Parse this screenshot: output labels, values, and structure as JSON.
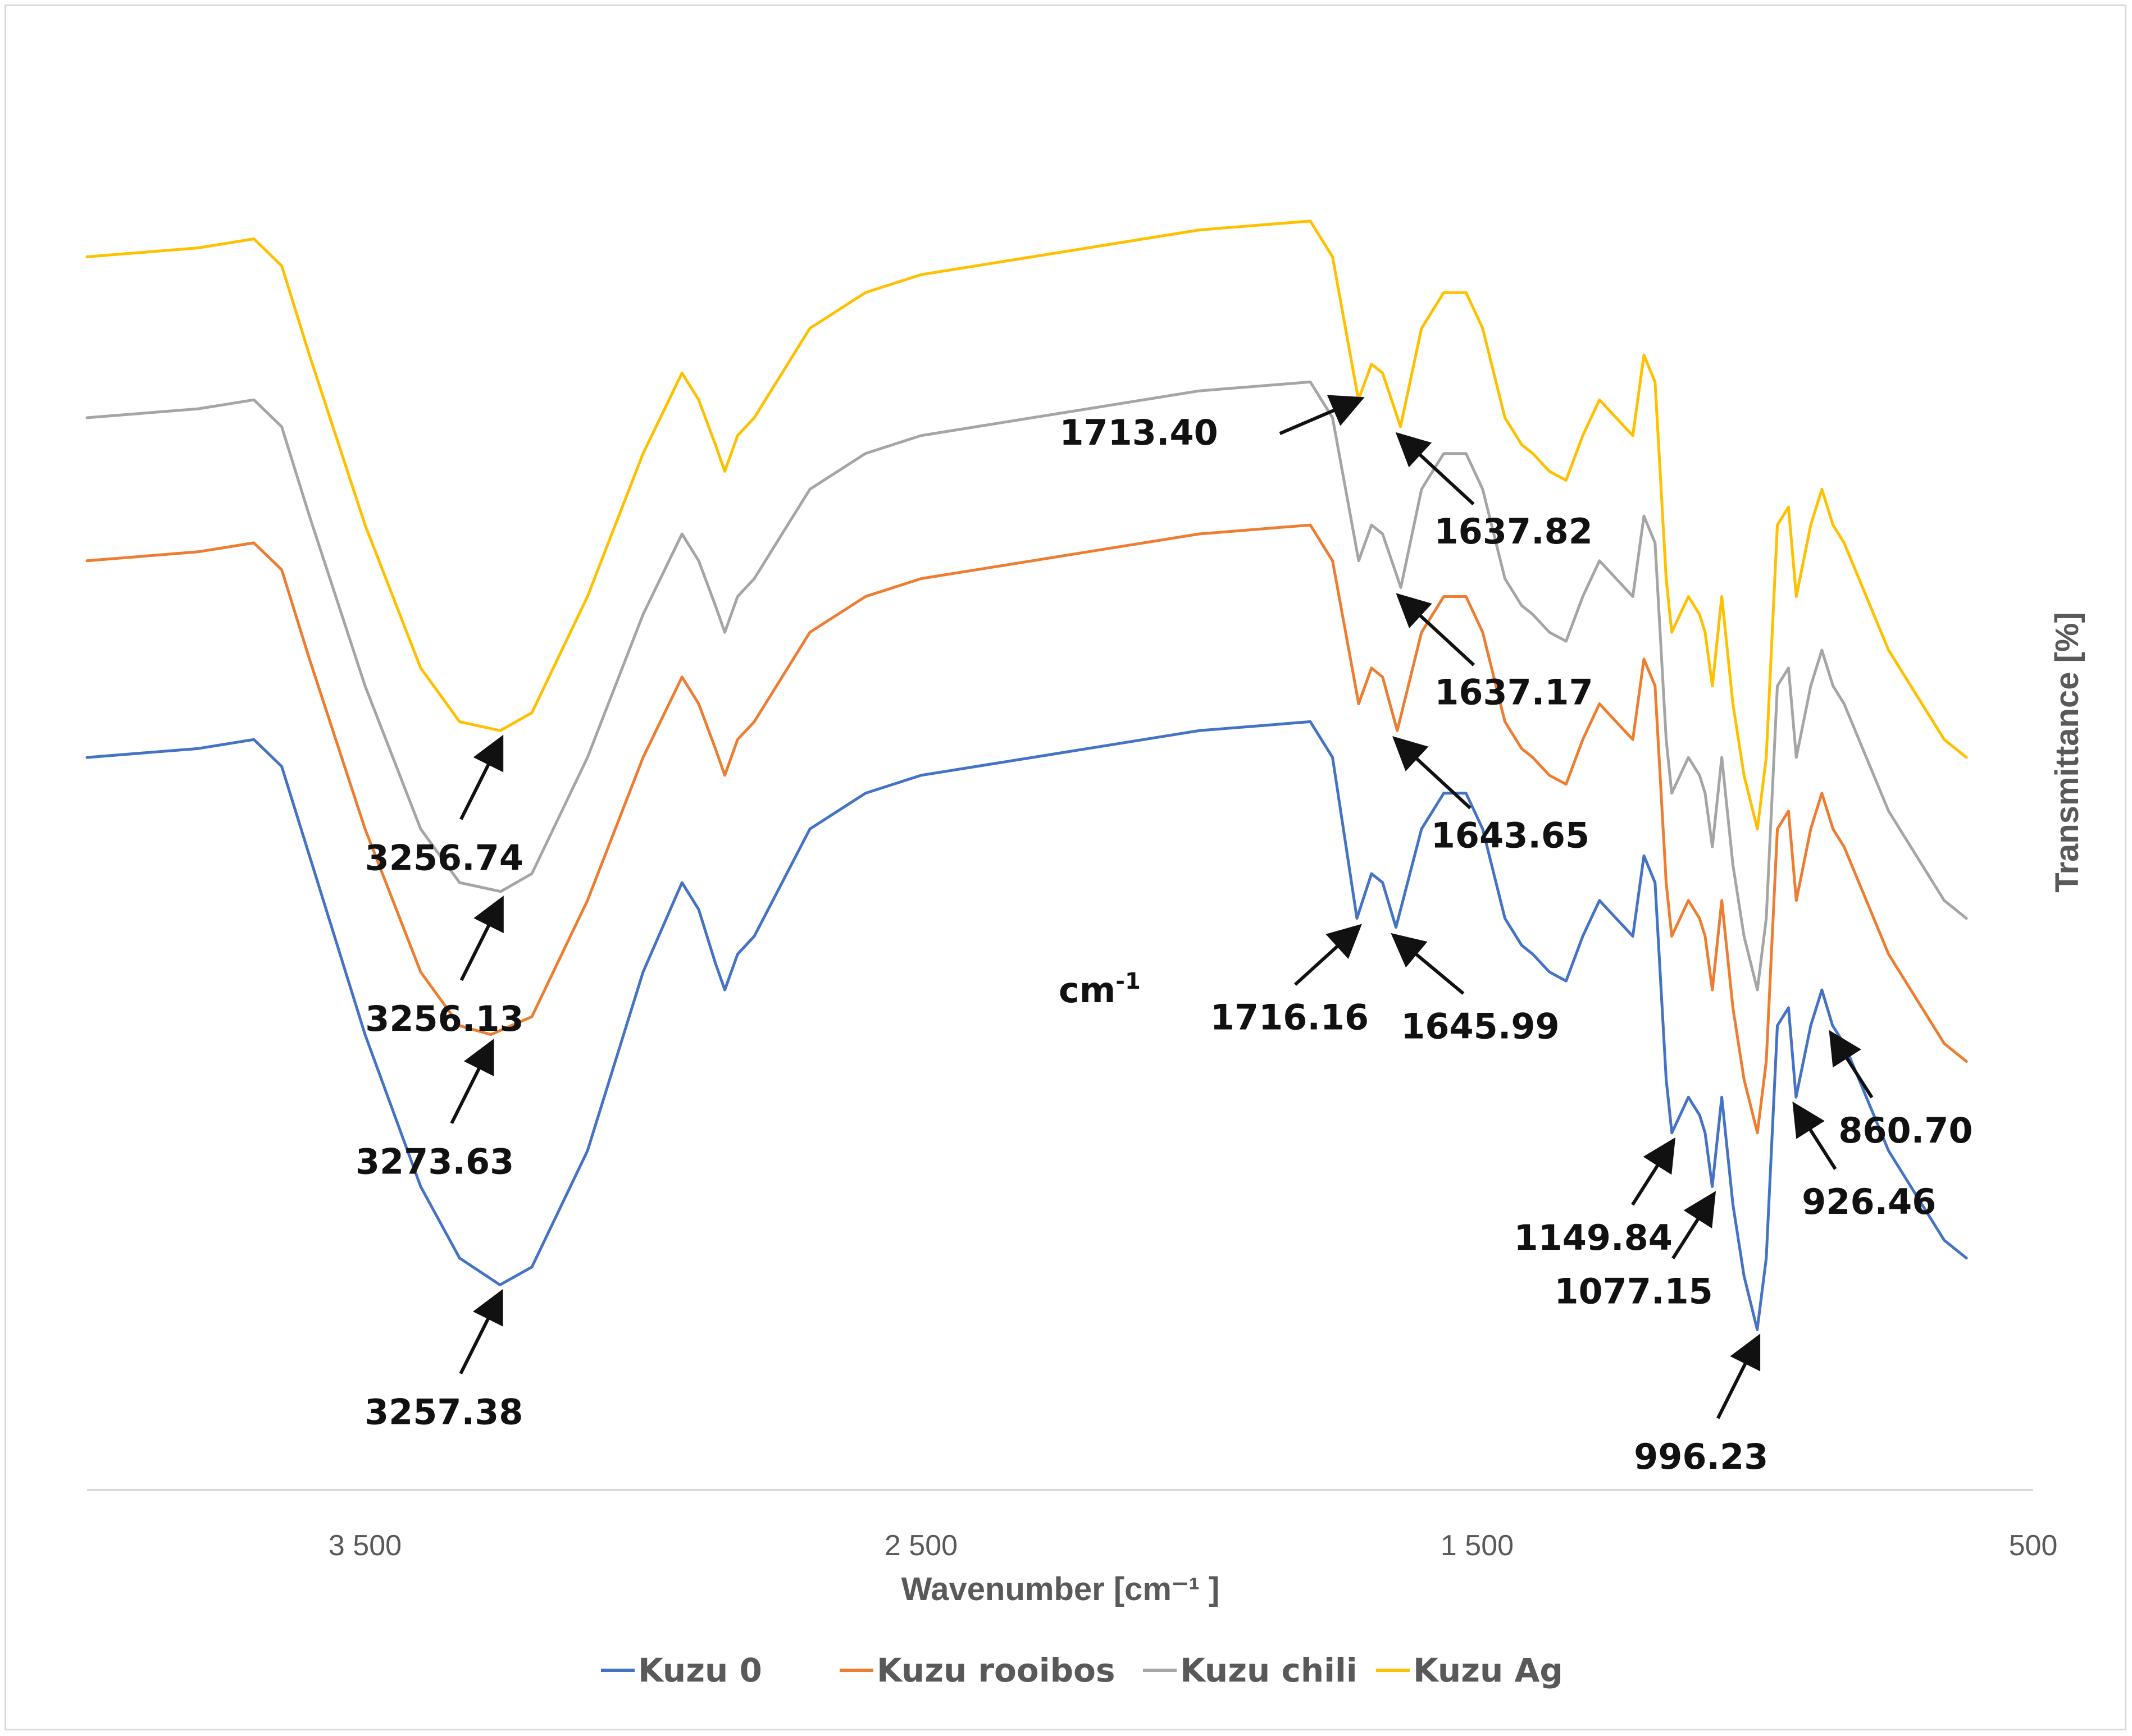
{
  "chart_data": {
    "type": "line",
    "title": "",
    "xlabel": "Wavenumber [cm⁻¹ ]",
    "ylabel": "Transmittance [%]",
    "xlim": [
      4000,
      500
    ],
    "x_reversed": true,
    "x_ticks": [
      {
        "value": 3500,
        "label": "3 500"
      },
      {
        "value": 2500,
        "label": "2 500"
      },
      {
        "value": 1500,
        "label": "1 500"
      },
      {
        "value": 500,
        "label": "500"
      }
    ],
    "y_ticks_shown": false,
    "grid": false,
    "legend_position": "bottom",
    "unit_note": "cm",
    "unit_note_sup": "-1",
    "series": [
      {
        "name": "Kuzu 0",
        "color": "#4472c4",
        "offset": 0,
        "points": [
          [
            4000,
            66
          ],
          [
            3800,
            67
          ],
          [
            3700,
            68
          ],
          [
            3650,
            65
          ],
          [
            3600,
            55
          ],
          [
            3500,
            35
          ],
          [
            3400,
            18
          ],
          [
            3330,
            10
          ],
          [
            3257.38,
            7
          ],
          [
            3200,
            9
          ],
          [
            3100,
            22
          ],
          [
            3000,
            42
          ],
          [
            2930,
            52
          ],
          [
            2900,
            49
          ],
          [
            2870,
            43
          ],
          [
            2853,
            40
          ],
          [
            2830,
            44
          ],
          [
            2800,
            46
          ],
          [
            2700,
            58
          ],
          [
            2600,
            62
          ],
          [
            2500,
            64
          ],
          [
            2400,
            65
          ],
          [
            2300,
            66
          ],
          [
            2200,
            67
          ],
          [
            2000,
            69
          ],
          [
            1800,
            70
          ],
          [
            1760,
            66
          ],
          [
            1716.16,
            48
          ],
          [
            1690,
            53
          ],
          [
            1670,
            52
          ],
          [
            1645.99,
            47
          ],
          [
            1600,
            58
          ],
          [
            1560,
            62
          ],
          [
            1520,
            62
          ],
          [
            1490,
            58
          ],
          [
            1450,
            48
          ],
          [
            1420,
            45
          ],
          [
            1400,
            44
          ],
          [
            1370,
            42
          ],
          [
            1340,
            41
          ],
          [
            1310,
            46
          ],
          [
            1280,
            50
          ],
          [
            1250,
            48
          ],
          [
            1220,
            46
          ],
          [
            1200,
            55
          ],
          [
            1180,
            52
          ],
          [
            1160,
            30
          ],
          [
            1149.84,
            24
          ],
          [
            1120,
            28
          ],
          [
            1100,
            26
          ],
          [
            1090,
            24
          ],
          [
            1077.15,
            18
          ],
          [
            1060,
            28
          ],
          [
            1040,
            16
          ],
          [
            1020,
            8
          ],
          [
            996.23,
            2
          ],
          [
            980,
            10
          ],
          [
            960,
            36
          ],
          [
            940,
            38
          ],
          [
            926.46,
            28
          ],
          [
            900,
            36
          ],
          [
            880,
            40
          ],
          [
            860.7,
            36
          ],
          [
            840,
            34
          ],
          [
            800,
            28
          ],
          [
            760,
            22
          ],
          [
            700,
            16
          ],
          [
            660,
            12
          ],
          [
            620,
            10
          ]
        ]
      },
      {
        "name": "Kuzu rooibos",
        "color": "#ed7d31",
        "offset": 22,
        "points": [
          [
            4000,
            66
          ],
          [
            3800,
            67
          ],
          [
            3700,
            68
          ],
          [
            3650,
            65
          ],
          [
            3600,
            55
          ],
          [
            3500,
            36
          ],
          [
            3400,
            20
          ],
          [
            3330,
            14
          ],
          [
            3273.63,
            13
          ],
          [
            3200,
            15
          ],
          [
            3100,
            28
          ],
          [
            3000,
            44
          ],
          [
            2930,
            53
          ],
          [
            2900,
            50
          ],
          [
            2870,
            45
          ],
          [
            2853,
            42
          ],
          [
            2830,
            46
          ],
          [
            2800,
            48
          ],
          [
            2700,
            58
          ],
          [
            2600,
            62
          ],
          [
            2500,
            64
          ],
          [
            2400,
            65
          ],
          [
            2300,
            66
          ],
          [
            2200,
            67
          ],
          [
            2000,
            69
          ],
          [
            1800,
            70
          ],
          [
            1760,
            66
          ],
          [
            1713,
            50
          ],
          [
            1690,
            54
          ],
          [
            1670,
            53
          ],
          [
            1643.65,
            47
          ],
          [
            1600,
            58
          ],
          [
            1560,
            62
          ],
          [
            1520,
            62
          ],
          [
            1490,
            58
          ],
          [
            1450,
            48
          ],
          [
            1420,
            45
          ],
          [
            1400,
            44
          ],
          [
            1370,
            42
          ],
          [
            1340,
            41
          ],
          [
            1310,
            46
          ],
          [
            1280,
            50
          ],
          [
            1250,
            48
          ],
          [
            1220,
            46
          ],
          [
            1200,
            55
          ],
          [
            1180,
            52
          ],
          [
            1160,
            30
          ],
          [
            1150,
            24
          ],
          [
            1120,
            28
          ],
          [
            1100,
            26
          ],
          [
            1090,
            24
          ],
          [
            1077,
            18
          ],
          [
            1060,
            28
          ],
          [
            1040,
            16
          ],
          [
            1020,
            8
          ],
          [
            996,
            2
          ],
          [
            980,
            10
          ],
          [
            960,
            36
          ],
          [
            940,
            38
          ],
          [
            926,
            28
          ],
          [
            900,
            36
          ],
          [
            880,
            40
          ],
          [
            860,
            36
          ],
          [
            840,
            34
          ],
          [
            800,
            28
          ],
          [
            760,
            22
          ],
          [
            700,
            16
          ],
          [
            660,
            12
          ],
          [
            620,
            10
          ]
        ]
      },
      {
        "name": "Kuzu chili",
        "color": "#a5a5a5",
        "offset": 38,
        "points": [
          [
            4000,
            66
          ],
          [
            3800,
            67
          ],
          [
            3700,
            68
          ],
          [
            3650,
            65
          ],
          [
            3600,
            55
          ],
          [
            3500,
            36
          ],
          [
            3400,
            20
          ],
          [
            3330,
            14
          ],
          [
            3256.13,
            13
          ],
          [
            3200,
            15
          ],
          [
            3100,
            28
          ],
          [
            3000,
            44
          ],
          [
            2930,
            53
          ],
          [
            2900,
            50
          ],
          [
            2870,
            45
          ],
          [
            2853,
            42
          ],
          [
            2830,
            46
          ],
          [
            2800,
            48
          ],
          [
            2700,
            58
          ],
          [
            2600,
            62
          ],
          [
            2500,
            64
          ],
          [
            2400,
            65
          ],
          [
            2300,
            66
          ],
          [
            2200,
            67
          ],
          [
            2000,
            69
          ],
          [
            1800,
            70
          ],
          [
            1760,
            66
          ],
          [
            1713,
            50
          ],
          [
            1690,
            54
          ],
          [
            1670,
            53
          ],
          [
            1637.17,
            47
          ],
          [
            1600,
            58
          ],
          [
            1560,
            62
          ],
          [
            1520,
            62
          ],
          [
            1490,
            58
          ],
          [
            1450,
            48
          ],
          [
            1420,
            45
          ],
          [
            1400,
            44
          ],
          [
            1370,
            42
          ],
          [
            1340,
            41
          ],
          [
            1310,
            46
          ],
          [
            1280,
            50
          ],
          [
            1250,
            48
          ],
          [
            1220,
            46
          ],
          [
            1200,
            55
          ],
          [
            1180,
            52
          ],
          [
            1160,
            30
          ],
          [
            1150,
            24
          ],
          [
            1120,
            28
          ],
          [
            1100,
            26
          ],
          [
            1090,
            24
          ],
          [
            1077,
            18
          ],
          [
            1060,
            28
          ],
          [
            1040,
            16
          ],
          [
            1020,
            8
          ],
          [
            996,
            2
          ],
          [
            980,
            10
          ],
          [
            960,
            36
          ],
          [
            940,
            38
          ],
          [
            926,
            28
          ],
          [
            900,
            36
          ],
          [
            880,
            40
          ],
          [
            860,
            36
          ],
          [
            840,
            34
          ],
          [
            800,
            28
          ],
          [
            760,
            22
          ],
          [
            700,
            16
          ],
          [
            660,
            12
          ],
          [
            620,
            10
          ]
        ]
      },
      {
        "name": "Kuzu Ag",
        "color": "#ffc000",
        "offset": 56,
        "points": [
          [
            4000,
            66
          ],
          [
            3800,
            67
          ],
          [
            3700,
            68
          ],
          [
            3650,
            65
          ],
          [
            3600,
            55
          ],
          [
            3500,
            36
          ],
          [
            3400,
            20
          ],
          [
            3330,
            14
          ],
          [
            3256.74,
            13
          ],
          [
            3200,
            15
          ],
          [
            3100,
            28
          ],
          [
            3000,
            44
          ],
          [
            2930,
            53
          ],
          [
            2900,
            50
          ],
          [
            2870,
            45
          ],
          [
            2853,
            42
          ],
          [
            2830,
            46
          ],
          [
            2800,
            48
          ],
          [
            2700,
            58
          ],
          [
            2600,
            62
          ],
          [
            2500,
            64
          ],
          [
            2400,
            65
          ],
          [
            2300,
            66
          ],
          [
            2200,
            67
          ],
          [
            2000,
            69
          ],
          [
            1800,
            70
          ],
          [
            1760,
            66
          ],
          [
            1713.4,
            50
          ],
          [
            1690,
            54
          ],
          [
            1670,
            53
          ],
          [
            1637.82,
            47
          ],
          [
            1600,
            58
          ],
          [
            1560,
            62
          ],
          [
            1520,
            62
          ],
          [
            1490,
            58
          ],
          [
            1450,
            48
          ],
          [
            1420,
            45
          ],
          [
            1400,
            44
          ],
          [
            1370,
            42
          ],
          [
            1340,
            41
          ],
          [
            1310,
            46
          ],
          [
            1280,
            50
          ],
          [
            1250,
            48
          ],
          [
            1220,
            46
          ],
          [
            1200,
            55
          ],
          [
            1180,
            52
          ],
          [
            1160,
            30
          ],
          [
            1150,
            24
          ],
          [
            1120,
            28
          ],
          [
            1100,
            26
          ],
          [
            1090,
            24
          ],
          [
            1077,
            18
          ],
          [
            1060,
            28
          ],
          [
            1040,
            16
          ],
          [
            1020,
            8
          ],
          [
            996,
            2
          ],
          [
            980,
            10
          ],
          [
            960,
            36
          ],
          [
            940,
            38
          ],
          [
            926,
            28
          ],
          [
            900,
            36
          ],
          [
            880,
            40
          ],
          [
            860,
            36
          ],
          [
            840,
            34
          ],
          [
            800,
            28
          ],
          [
            760,
            22
          ],
          [
            700,
            16
          ],
          [
            660,
            12
          ],
          [
            620,
            10
          ]
        ]
      }
    ],
    "annotations": [
      {
        "text": "1713.40",
        "series": "Kuzu Ag",
        "x": 1713.4,
        "dir": "left"
      },
      {
        "text": "1637.82",
        "series": "Kuzu Ag",
        "x": 1637.82,
        "dir": "right"
      },
      {
        "text": "3256.74",
        "series": "Kuzu Ag",
        "x": 3256.74,
        "dir": "below"
      },
      {
        "text": "1637.17",
        "series": "Kuzu chili",
        "x": 1637.17,
        "dir": "right"
      },
      {
        "text": "3256.13",
        "series": "Kuzu chili",
        "x": 3256.13,
        "dir": "below"
      },
      {
        "text": "1643.65",
        "series": "Kuzu rooibos",
        "x": 1643.65,
        "dir": "right"
      },
      {
        "text": "3273.63",
        "series": "Kuzu rooibos",
        "x": 3273.63,
        "dir": "below"
      },
      {
        "text": "3257.38",
        "series": "Kuzu 0",
        "x": 3257.38,
        "dir": "below"
      },
      {
        "text": "1716.16",
        "series": "Kuzu 0",
        "x": 1716.16,
        "dir": "left-below"
      },
      {
        "text": "1645.99",
        "series": "Kuzu 0",
        "x": 1645.99,
        "dir": "right-below"
      },
      {
        "text": "1149.84",
        "series": "Kuzu 0",
        "x": 1149.84,
        "dir": "below-left"
      },
      {
        "text": "1077.15",
        "series": "Kuzu 0",
        "x": 1077.15,
        "dir": "below-left"
      },
      {
        "text": "996.23",
        "series": "Kuzu 0",
        "x": 996.23,
        "dir": "below"
      },
      {
        "text": "926.46",
        "series": "Kuzu 0",
        "x": 926.46,
        "dir": "below-right"
      },
      {
        "text": "860.70",
        "series": "Kuzu 0",
        "x": 860.7,
        "dir": "below-right"
      }
    ]
  }
}
